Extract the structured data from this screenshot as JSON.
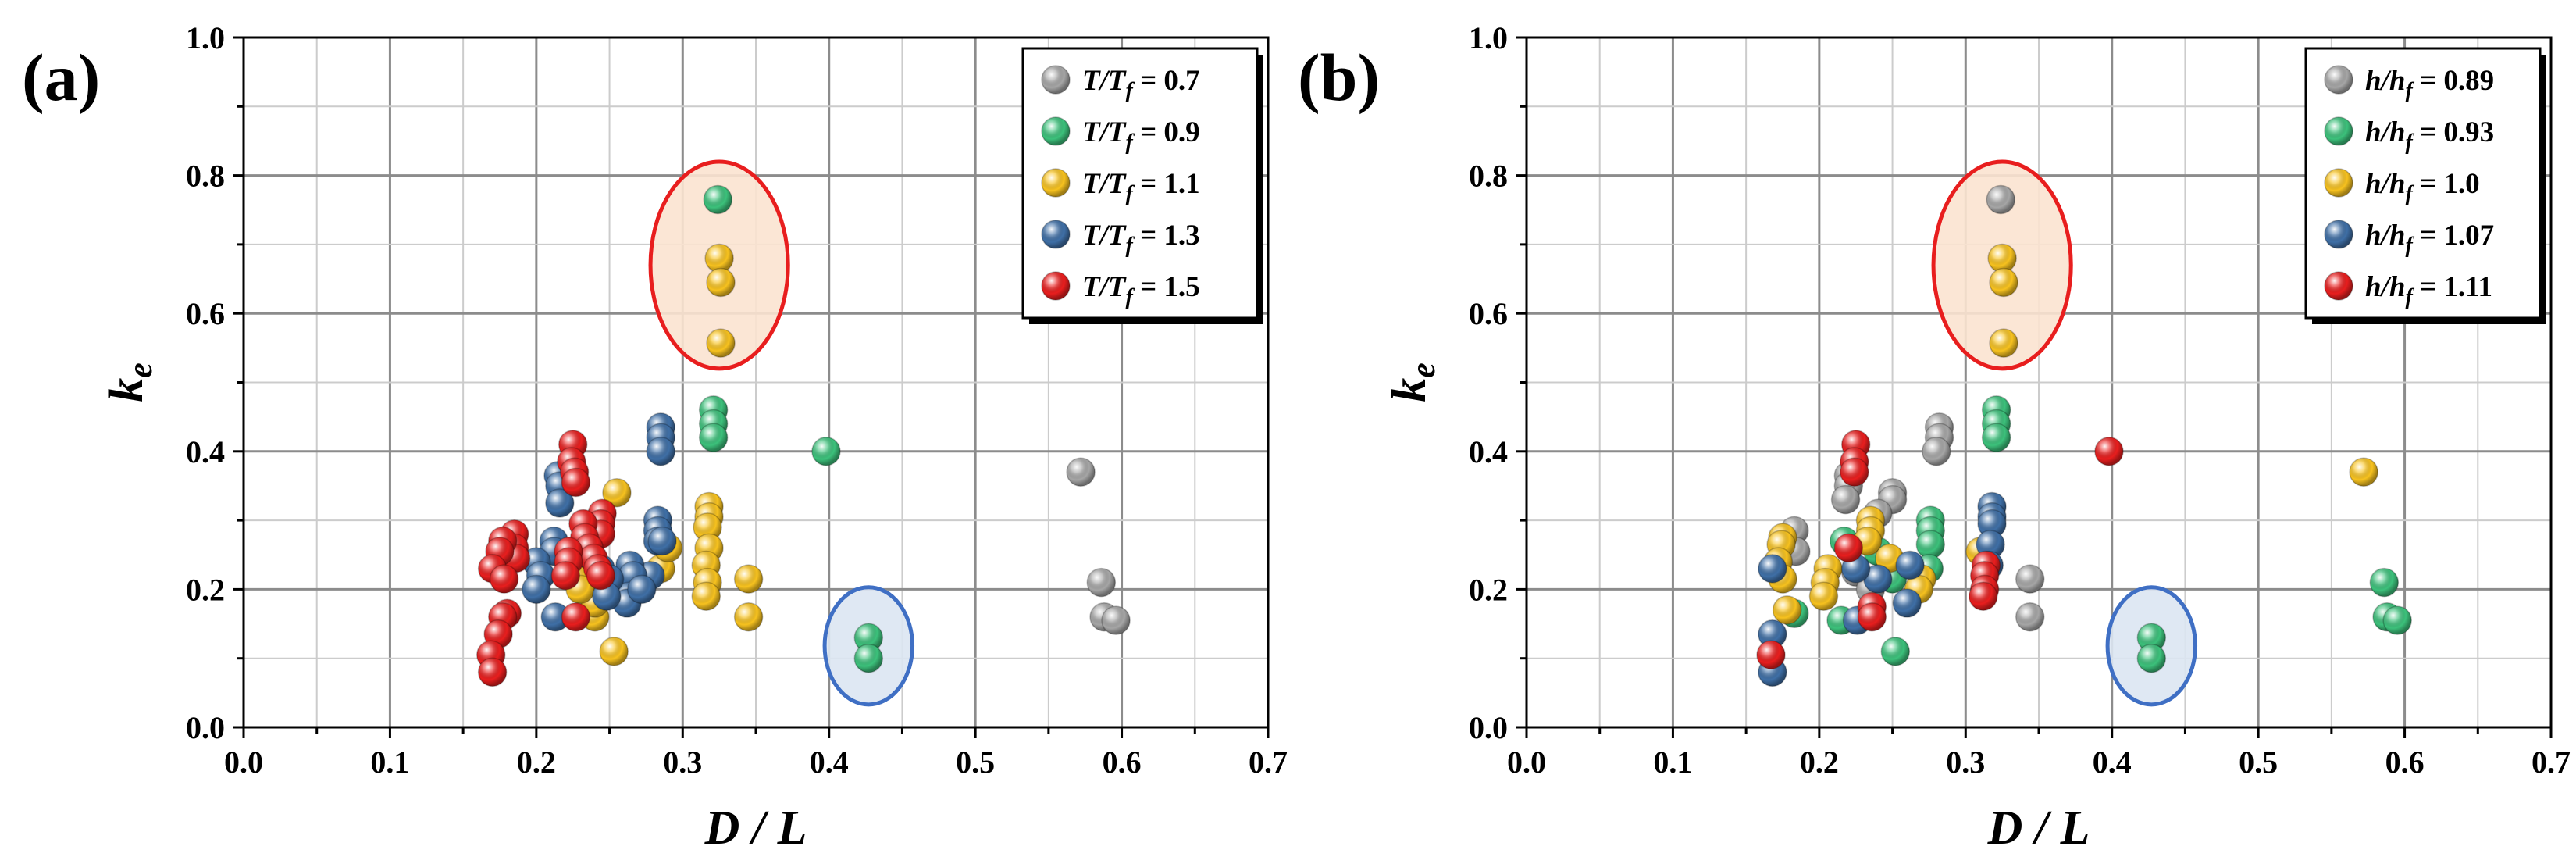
{
  "chart_data": [
    {
      "type": "scatter",
      "panel_label": "(a)",
      "xlabel": "D / L",
      "ylabel": "k",
      "ylabel_sub": "e",
      "xlim": [
        0.0,
        0.7
      ],
      "ylim": [
        0.0,
        1.0
      ],
      "xticks": [
        "0.0",
        "0.1",
        "0.2",
        "0.3",
        "0.4",
        "0.5",
        "0.6",
        "0.7"
      ],
      "yticks": [
        "0.0",
        "0.2",
        "0.4",
        "0.6",
        "0.8",
        "1.0"
      ],
      "grid": true,
      "legend_position": "top-right",
      "series": [
        {
          "name": "T/Tf = 0.7",
          "legend_var": "T/T",
          "legend_sub": "f",
          "legend_value": " = 0.7",
          "color": "#a6a6a6",
          "points": [
            [
              0.572,
              0.37
            ],
            [
              0.586,
              0.21
            ],
            [
              0.588,
              0.16
            ],
            [
              0.596,
              0.155
            ]
          ]
        },
        {
          "name": "T/Tf = 0.9",
          "legend_var": "T/T",
          "legend_sub": "f",
          "legend_value": " = 0.9",
          "color": "#3cc17b",
          "points": [
            [
              0.324,
              0.765
            ],
            [
              0.321,
              0.46
            ],
            [
              0.321,
              0.44
            ],
            [
              0.321,
              0.42
            ],
            [
              0.398,
              0.4
            ],
            [
              0.427,
              0.13
            ],
            [
              0.427,
              0.1
            ]
          ]
        },
        {
          "name": "T/Tf = 1.1",
          "legend_var": "T/T",
          "legend_sub": "f",
          "legend_value": " = 1.1",
          "color": "#f7c21f",
          "points": [
            [
              0.325,
              0.68
            ],
            [
              0.326,
              0.645
            ],
            [
              0.326,
              0.557
            ],
            [
              0.318,
              0.32
            ],
            [
              0.318,
              0.305
            ],
            [
              0.317,
              0.29
            ],
            [
              0.318,
              0.26
            ],
            [
              0.316,
              0.235
            ],
            [
              0.317,
              0.21
            ],
            [
              0.316,
              0.19
            ],
            [
              0.345,
              0.215
            ],
            [
              0.345,
              0.16
            ],
            [
              0.255,
              0.34
            ],
            [
              0.253,
              0.11
            ],
            [
              0.24,
              0.16
            ],
            [
              0.24,
              0.18
            ],
            [
              0.285,
              0.23
            ],
            [
              0.29,
              0.26
            ],
            [
              0.228,
              0.215
            ],
            [
              0.23,
              0.2
            ]
          ]
        },
        {
          "name": "T/Tf = 1.3",
          "legend_var": "T/T",
          "legend_sub": "f",
          "legend_value": " = 1.3",
          "color": "#3f6fa6",
          "points": [
            [
              0.285,
              0.435
            ],
            [
              0.285,
              0.42
            ],
            [
              0.285,
              0.4
            ],
            [
              0.283,
              0.3
            ],
            [
              0.283,
              0.285
            ],
            [
              0.283,
              0.27
            ],
            [
              0.286,
              0.27
            ],
            [
              0.278,
              0.22
            ],
            [
              0.264,
              0.235
            ],
            [
              0.266,
              0.22
            ],
            [
              0.263,
              0.19
            ],
            [
              0.262,
              0.18
            ],
            [
              0.272,
              0.2
            ],
            [
              0.215,
              0.365
            ],
            [
              0.216,
              0.35
            ],
            [
              0.216,
              0.325
            ],
            [
              0.212,
              0.27
            ],
            [
              0.212,
              0.255
            ],
            [
              0.2,
              0.24
            ],
            [
              0.203,
              0.22
            ],
            [
              0.2,
              0.2
            ],
            [
              0.213,
              0.16
            ],
            [
              0.244,
              0.23
            ],
            [
              0.236,
              0.25
            ],
            [
              0.25,
              0.215
            ],
            [
              0.248,
              0.19
            ]
          ]
        },
        {
          "name": "T/Tf = 1.5",
          "legend_var": "T/T",
          "legend_sub": "f",
          "legend_value": " = 1.5",
          "color": "#e81e1e",
          "points": [
            [
              0.225,
              0.41
            ],
            [
              0.224,
              0.385
            ],
            [
              0.226,
              0.37
            ],
            [
              0.227,
              0.355
            ],
            [
              0.245,
              0.31
            ],
            [
              0.244,
              0.295
            ],
            [
              0.244,
              0.28
            ],
            [
              0.232,
              0.295
            ],
            [
              0.233,
              0.275
            ],
            [
              0.236,
              0.26
            ],
            [
              0.239,
              0.245
            ],
            [
              0.242,
              0.23
            ],
            [
              0.244,
              0.22
            ],
            [
              0.222,
              0.255
            ],
            [
              0.222,
              0.24
            ],
            [
              0.22,
              0.22
            ],
            [
              0.185,
              0.28
            ],
            [
              0.185,
              0.26
            ],
            [
              0.186,
              0.245
            ],
            [
              0.177,
              0.27
            ],
            [
              0.175,
              0.255
            ],
            [
              0.17,
              0.23
            ],
            [
              0.178,
              0.215
            ],
            [
              0.18,
              0.165
            ],
            [
              0.177,
              0.16
            ],
            [
              0.174,
              0.135
            ],
            [
              0.169,
              0.105
            ],
            [
              0.17,
              0.08
            ],
            [
              0.227,
              0.16
            ]
          ]
        }
      ],
      "annotations": [
        {
          "shape": "ellipse",
          "center": [
            0.325,
            0.67
          ],
          "rx": 0.047,
          "ry": 0.15,
          "stroke": "#e81e1e",
          "fill": "#fbe3d0"
        },
        {
          "shape": "circle",
          "center": [
            0.427,
            0.118
          ],
          "rx": 0.03,
          "ry": 0.085,
          "stroke": "#3f6fc4",
          "fill": "#dce6f2"
        }
      ]
    },
    {
      "type": "scatter",
      "panel_label": "(b)",
      "xlabel": "D / L",
      "ylabel": "k",
      "ylabel_sub": "e",
      "xlim": [
        0.0,
        0.7
      ],
      "ylim": [
        0.0,
        1.0
      ],
      "xticks": [
        "0.0",
        "0.1",
        "0.2",
        "0.3",
        "0.4",
        "0.5",
        "0.6",
        "0.7"
      ],
      "yticks": [
        "0.0",
        "0.2",
        "0.4",
        "0.6",
        "0.8",
        "1.0"
      ],
      "grid": true,
      "legend_position": "top-right",
      "series": [
        {
          "name": "h/hf = 0.89",
          "legend_var": "h/h",
          "legend_sub": "f",
          "legend_value": " = 0.89",
          "color": "#a6a6a6",
          "points": [
            [
              0.324,
              0.765
            ],
            [
              0.282,
              0.435
            ],
            [
              0.282,
              0.42
            ],
            [
              0.28,
              0.4
            ],
            [
              0.25,
              0.34
            ],
            [
              0.25,
              0.33
            ],
            [
              0.24,
              0.31
            ],
            [
              0.22,
              0.365
            ],
            [
              0.22,
              0.35
            ],
            [
              0.218,
              0.33
            ],
            [
              0.183,
              0.285
            ],
            [
              0.184,
              0.255
            ],
            [
              0.344,
              0.215
            ],
            [
              0.344,
              0.16
            ],
            [
              0.225,
              0.225
            ],
            [
              0.235,
              0.2
            ]
          ]
        },
        {
          "name": "h/hf = 0.93",
          "legend_var": "h/h",
          "legend_sub": "f",
          "legend_value": " = 0.93",
          "color": "#3cc17b",
          "points": [
            [
              0.321,
              0.46
            ],
            [
              0.321,
              0.44
            ],
            [
              0.321,
              0.42
            ],
            [
              0.276,
              0.3
            ],
            [
              0.276,
              0.285
            ],
            [
              0.276,
              0.265
            ],
            [
              0.275,
              0.23
            ],
            [
              0.217,
              0.27
            ],
            [
              0.215,
              0.155
            ],
            [
              0.252,
              0.11
            ],
            [
              0.24,
              0.255
            ],
            [
              0.25,
              0.215
            ],
            [
              0.427,
              0.13
            ],
            [
              0.427,
              0.1
            ],
            [
              0.586,
              0.21
            ],
            [
              0.588,
              0.16
            ],
            [
              0.595,
              0.155
            ],
            [
              0.183,
              0.165
            ]
          ]
        },
        {
          "name": "h/hf = 1.0",
          "legend_var": "h/h",
          "legend_sub": "f",
          "legend_value": " = 1.0",
          "color": "#f7c21f",
          "points": [
            [
              0.325,
              0.68
            ],
            [
              0.326,
              0.645
            ],
            [
              0.326,
              0.557
            ],
            [
              0.572,
              0.37
            ],
            [
              0.235,
              0.3
            ],
            [
              0.235,
              0.285
            ],
            [
              0.233,
              0.27
            ],
            [
              0.175,
              0.275
            ],
            [
              0.174,
              0.265
            ],
            [
              0.172,
              0.24
            ],
            [
              0.206,
              0.23
            ],
            [
              0.204,
              0.21
            ],
            [
              0.203,
              0.19
            ],
            [
              0.175,
              0.215
            ],
            [
              0.178,
              0.17
            ],
            [
              0.27,
              0.215
            ],
            [
              0.268,
              0.2
            ],
            [
              0.31,
              0.255
            ],
            [
              0.248,
              0.245
            ]
          ]
        },
        {
          "name": "h/hf = 1.07",
          "legend_var": "h/h",
          "legend_sub": "f",
          "legend_value": " = 1.07",
          "color": "#3f6fa6",
          "points": [
            [
              0.318,
              0.32
            ],
            [
              0.318,
              0.305
            ],
            [
              0.318,
              0.295
            ],
            [
              0.317,
              0.265
            ],
            [
              0.316,
              0.235
            ],
            [
              0.168,
              0.23
            ],
            [
              0.168,
              0.135
            ],
            [
              0.168,
              0.08
            ],
            [
              0.226,
              0.155
            ],
            [
              0.24,
              0.215
            ],
            [
              0.262,
              0.235
            ],
            [
              0.26,
              0.18
            ],
            [
              0.225,
              0.23
            ]
          ]
        },
        {
          "name": "h/hf = 1.11",
          "legend_var": "h/h",
          "legend_sub": "f",
          "legend_value": " = 1.11",
          "color": "#e81e1e",
          "points": [
            [
              0.225,
              0.41
            ],
            [
              0.224,
              0.385
            ],
            [
              0.224,
              0.37
            ],
            [
              0.398,
              0.4
            ],
            [
              0.314,
              0.235
            ],
            [
              0.313,
              0.22
            ],
            [
              0.313,
              0.2
            ],
            [
              0.312,
              0.19
            ],
            [
              0.22,
              0.26
            ],
            [
              0.236,
              0.175
            ],
            [
              0.236,
              0.16
            ],
            [
              0.167,
              0.105
            ]
          ]
        }
      ],
      "annotations": [
        {
          "shape": "ellipse",
          "center": [
            0.325,
            0.67
          ],
          "rx": 0.047,
          "ry": 0.15,
          "stroke": "#e81e1e",
          "fill": "#fbe3d0"
        },
        {
          "shape": "circle",
          "center": [
            0.427,
            0.118
          ],
          "rx": 0.03,
          "ry": 0.085,
          "stroke": "#3f6fc4",
          "fill": "#dce6f2"
        }
      ]
    }
  ]
}
